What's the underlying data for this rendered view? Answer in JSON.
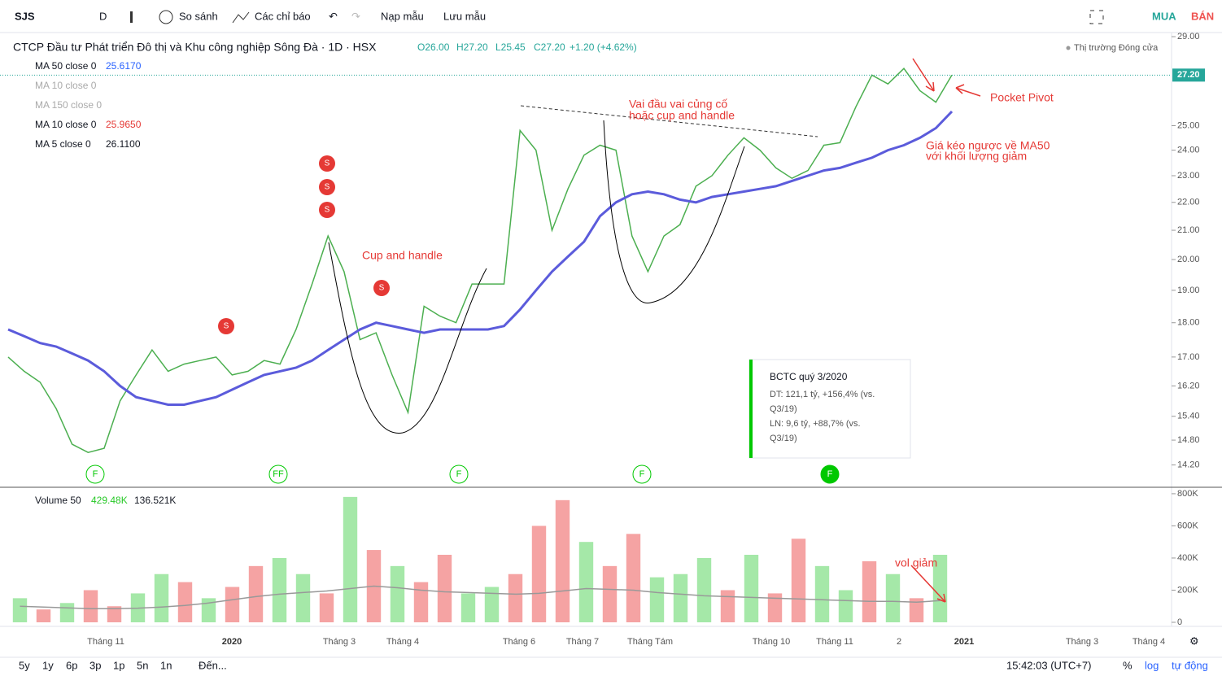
{
  "toolbar": {
    "symbol": "SJS",
    "interval": "D",
    "compare": "So sánh",
    "indicators": "Các chỉ báo",
    "load": "Nạp mẫu",
    "save": "Lưu mẫu",
    "buy": "MUA",
    "sell": "BÁN"
  },
  "header": {
    "title": "CTCP Đầu tư Phát triển Đô thị và Khu công nghiệp Sông Đà · 1D · HSX",
    "open": "O26.00",
    "high": "H27.20",
    "low": "L25.45",
    "close": "C27.20",
    "change": "+1.20 (+4.62%)",
    "market": "Thị trường Đóng cửa",
    "last_price": "27.20"
  },
  "legend": [
    {
      "name": "MA 50 close 0",
      "value": "25.6170"
    },
    {
      "name": "MA 10 close 0"
    },
    {
      "name": "MA 150 close 0"
    },
    {
      "name": "MA 10 close 0",
      "value": "25.9650"
    },
    {
      "name": "MA 5 close 0",
      "value": "26.1100"
    }
  ],
  "volume_legend": {
    "name": "Volume 50",
    "value": "429.48K",
    "ma": "136.521K"
  },
  "annotations": {
    "hs1": "Vai đầu vai củng cố",
    "hs2": "hoặc cup and handle",
    "cup": "Cup and handle",
    "pivot": "Pocket Pivot",
    "pull1": "Giá kéo ngược về MA50",
    "pull2": "với khối lượng giảm",
    "vol": "vol giảm"
  },
  "tooltip": {
    "title": "BCTC quý 3/2020",
    "dt1": "DT: 121,1 tỷ, +156,4% (vs.",
    "dt2": "Q3/19)",
    "ln1": "LN: 9,6 tỷ, +88,7% (vs.",
    "ln2": "Q3/19)"
  },
  "markers": {
    "split": [
      "S",
      "S",
      "S",
      "S",
      "S"
    ],
    "financial": [
      "F",
      "FF",
      "F",
      "F",
      "F"
    ]
  },
  "time_labels": [
    "Tháng 11",
    "2020",
    "Tháng 3",
    "Tháng 4",
    "Tháng 6",
    "Tháng 7",
    "Tháng Tám",
    "Tháng 10",
    "Tháng 11",
    "2",
    "2021",
    "Tháng 3",
    "Tháng 4"
  ],
  "footer": {
    "ranges": [
      "5y",
      "1y",
      "6p",
      "3p",
      "1p",
      "5n",
      "1n"
    ],
    "goto": "Đến...",
    "time": "15:42:03 (UTC+7)",
    "percent": "%",
    "log": "log",
    "auto": "tự động"
  },
  "chart_data": [
    {
      "type": "line",
      "log": true,
      "ylim": [
        13.7,
        29.2
      ],
      "yticks": [
        {
          "value": 29,
          "label": "29.00"
        },
        {
          "value": 25,
          "label": "25.00"
        },
        {
          "value": 24,
          "label": "24.00"
        },
        {
          "value": 23,
          "label": "23.00"
        },
        {
          "value": 22,
          "label": "22.00"
        },
        {
          "value": 21,
          "label": "21.00"
        },
        {
          "value": 20,
          "label": "20.00"
        },
        {
          "value": 19,
          "label": "19.00"
        },
        {
          "value": 18,
          "label": "18.00"
        },
        {
          "value": 17,
          "label": "17.00"
        },
        {
          "value": 16.2,
          "label": "16.20"
        },
        {
          "value": 15.4,
          "label": "15.40"
        },
        {
          "value": 14.8,
          "label": "14.80"
        },
        {
          "value": 14.2,
          "label": "14.20"
        }
      ],
      "series": [
        {
          "color": "#4caf50",
          "values": [
            17.0,
            16.6,
            16.3,
            15.6,
            14.7,
            14.5,
            14.6,
            15.8,
            16.5,
            17.2,
            16.6,
            16.8,
            16.9,
            17.0,
            16.5,
            16.6,
            16.9,
            16.8,
            17.8,
            19.2,
            20.8,
            19.6,
            17.5,
            17.7,
            16.5,
            15.5,
            18.5,
            18.2,
            18.0,
            19.2,
            19.2,
            19.2,
            24.8,
            24.0,
            21.0,
            22.5,
            23.8,
            24.2,
            24.0,
            20.8,
            19.6,
            20.8,
            21.2,
            22.6,
            23.0,
            23.8,
            24.5,
            24.0,
            23.3,
            22.9,
            23.2,
            24.2,
            24.3,
            25.8,
            27.2,
            26.8,
            27.5,
            26.5,
            26.0,
            27.2
          ]
        },
        {
          "color": "#5b5bdb",
          "values": [
            17.8,
            17.6,
            17.4,
            17.3,
            17.1,
            16.9,
            16.6,
            16.2,
            15.9,
            15.8,
            15.7,
            15.7,
            15.8,
            15.9,
            16.1,
            16.3,
            16.5,
            16.6,
            16.7,
            16.9,
            17.2,
            17.5,
            17.8,
            18.0,
            17.9,
            17.8,
            17.7,
            17.8,
            17.8,
            17.8,
            17.8,
            17.9,
            18.4,
            19.0,
            19.6,
            20.1,
            20.6,
            21.5,
            22.0,
            22.3,
            22.4,
            22.3,
            22.1,
            22.0,
            22.2,
            22.3,
            22.4,
            22.5,
            22.6,
            22.8,
            23.0,
            23.2,
            23.3,
            23.5,
            23.7,
            24.0,
            24.2,
            24.5,
            24.9,
            25.6
          ]
        }
      ]
    },
    {
      "type": "bar",
      "ylim": [
        0,
        835000
      ],
      "yticks": [
        {
          "value": 800000,
          "label": "800K"
        },
        {
          "value": 600000,
          "label": "600K"
        },
        {
          "value": 400000,
          "label": "400K"
        },
        {
          "value": 200000,
          "label": "200K"
        },
        0
      ],
      "values": [
        150000,
        80000,
        120000,
        200000,
        100000,
        180000,
        300000,
        250000,
        150000,
        220000,
        350000,
        400000,
        300000,
        180000,
        780000,
        450000,
        350000,
        250000,
        420000,
        180000,
        220000,
        300000,
        600000,
        760000,
        500000,
        350000,
        550000,
        280000,
        300000,
        400000,
        200000,
        420000,
        180000,
        520000,
        350000,
        200000,
        380000,
        300000,
        150000,
        420000
      ],
      "colors": [
        "#a5e8a8",
        "#f5a3a3",
        "#a5e8a8",
        "#f5a3a3",
        "#f5a3a3",
        "#a5e8a8",
        "#a5e8a8",
        "#f5a3a3",
        "#a5e8a8",
        "#f5a3a3",
        "#f5a3a3",
        "#a5e8a8",
        "#a5e8a8",
        "#f5a3a3",
        "#a5e8a8",
        "#f5a3a3",
        "#a5e8a8",
        "#f5a3a3",
        "#f5a3a3",
        "#a5e8a8",
        "#a5e8a8",
        "#f5a3a3",
        "#f5a3a3",
        "#f5a3a3",
        "#a5e8a8",
        "#f5a3a3",
        "#f5a3a3",
        "#a5e8a8",
        "#a5e8a8",
        "#a5e8a8",
        "#f5a3a3",
        "#a5e8a8",
        "#f5a3a3",
        "#f5a3a3",
        "#a5e8a8",
        "#a5e8a8",
        "#f5a3a3",
        "#a5e8a8",
        "#f5a3a3",
        "#a5e8a8"
      ],
      "ma": [
        100000,
        95000,
        90000,
        85000,
        85000,
        88000,
        95000,
        105000,
        120000,
        140000,
        160000,
        175000,
        185000,
        195000,
        210000,
        225000,
        215000,
        200000,
        190000,
        185000,
        180000,
        175000,
        180000,
        195000,
        210000,
        205000,
        200000,
        185000,
        175000,
        165000,
        160000,
        155000,
        150000,
        145000,
        140000,
        135000,
        130000,
        130000,
        125000,
        135000
      ]
    }
  ]
}
